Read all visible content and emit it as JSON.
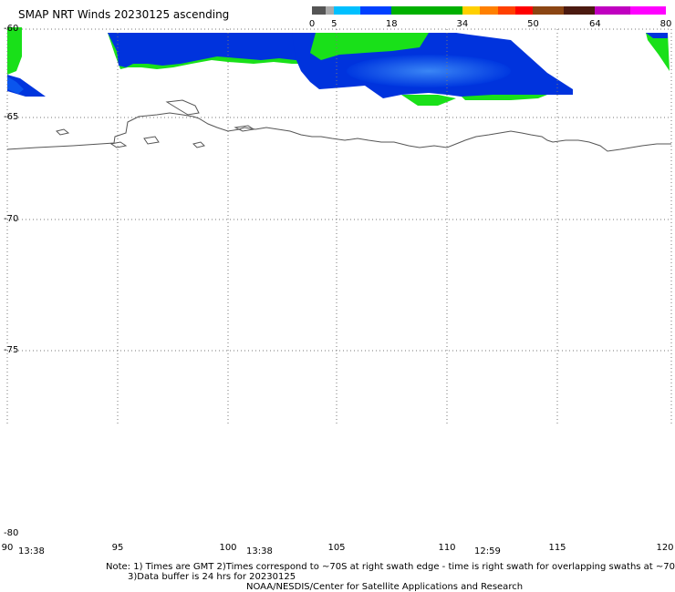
{
  "title": "SMAP NRT Winds 20230125 ascending",
  "colorbar": {
    "ticks": [
      "0",
      "5",
      "18",
      "34",
      "50",
      "64",
      "80"
    ],
    "segments": [
      {
        "from": 0,
        "to": 3,
        "color": "#555555"
      },
      {
        "from": 3,
        "to": 5,
        "color": "#aaaaaa"
      },
      {
        "from": 5,
        "to": 11,
        "color": "#00c0ff"
      },
      {
        "from": 11,
        "to": 18,
        "color": "#0040ff"
      },
      {
        "from": 18,
        "to": 34,
        "color": "#00b000"
      },
      {
        "from": 34,
        "to": 38,
        "color": "#ffd000"
      },
      {
        "from": 38,
        "to": 42,
        "color": "#ff8000"
      },
      {
        "from": 42,
        "to": 46,
        "color": "#ff4000"
      },
      {
        "from": 46,
        "to": 50,
        "color": "#ff0000"
      },
      {
        "from": 50,
        "to": 57,
        "color": "#8b4513"
      },
      {
        "from": 57,
        "to": 64,
        "color": "#4b1a10"
      },
      {
        "from": 64,
        "to": 72,
        "color": "#c000c0"
      },
      {
        "from": 72,
        "to": 80,
        "color": "#ff00ff"
      }
    ]
  },
  "lat_labels": [
    "-60",
    "-65",
    "-70",
    "-75",
    "-80"
  ],
  "lon_labels": [
    "90",
    "95",
    "100",
    "105",
    "110",
    "115",
    "120"
  ],
  "times": [
    "13:38",
    "13:38",
    "12:59"
  ],
  "notes": {
    "line1": "Note: 1) Times are GMT 2)Times correspond to ~70S at right swath edge - time is right swath for overlapping swaths at ~70S",
    "line2": "3)Data buffer is 24 hrs for 20230125",
    "line3": "NOAA/NESDIS/Center for Satellite Applications and Research"
  },
  "colors": {
    "wind_blue": "#0033dd",
    "wind_light_blue": "#2f7cf0",
    "wind_green": "#19e019",
    "coast": "#555555",
    "grid": "#777777"
  }
}
